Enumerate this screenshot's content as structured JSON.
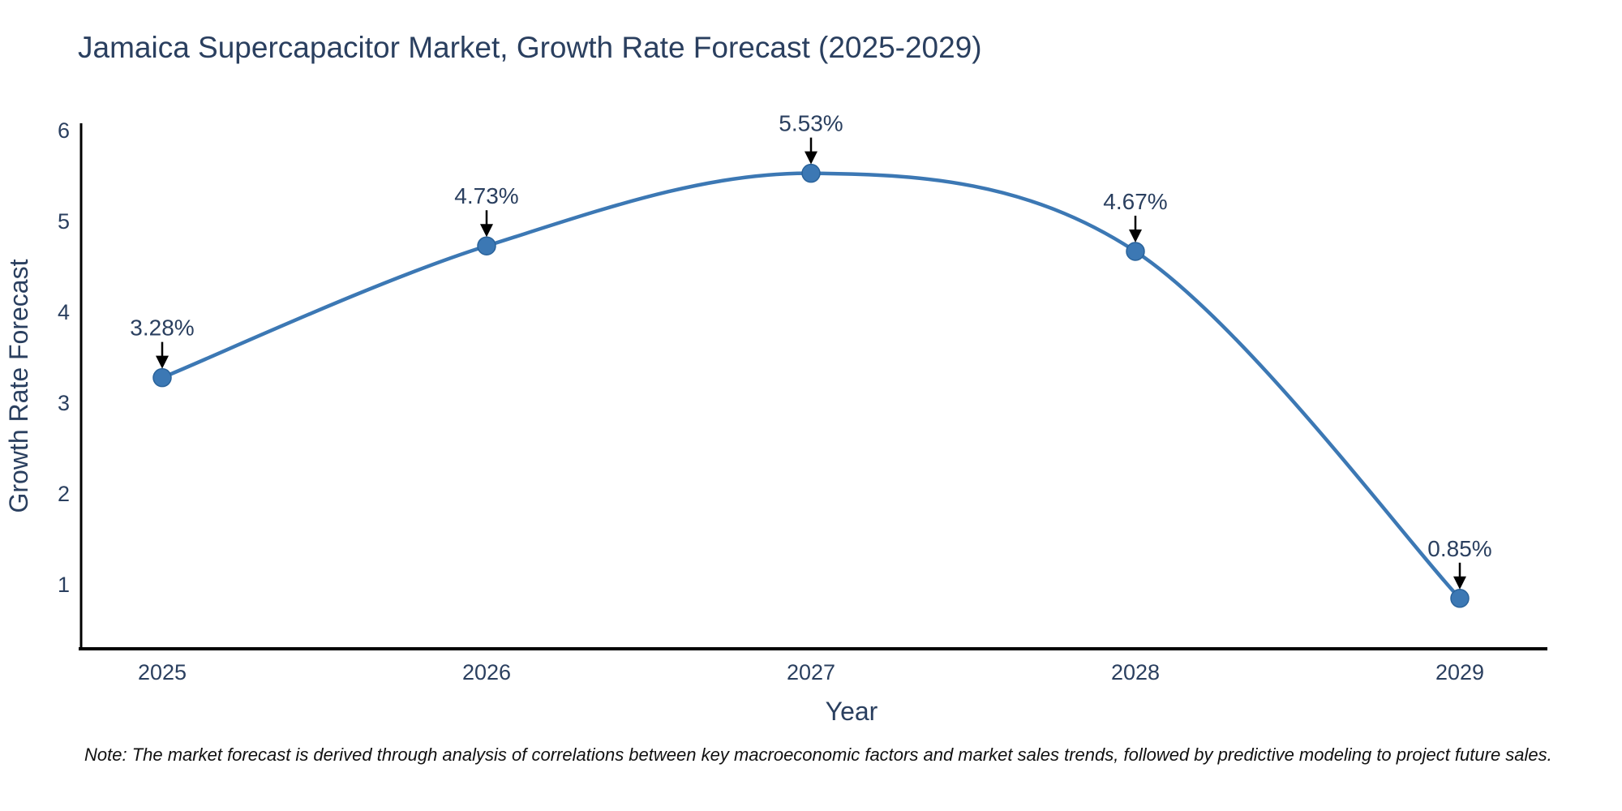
{
  "chart_data": {
    "type": "line",
    "title": "Jamaica Supercapacitor Market, Growth Rate Forecast (2025-2029)",
    "xlabel": "Year",
    "ylabel": "Growth Rate Forecast",
    "x": [
      2025,
      2026,
      2027,
      2028,
      2029
    ],
    "y": [
      3.28,
      4.73,
      5.53,
      4.67,
      0.85
    ],
    "point_labels": [
      "3.28%",
      "4.73%",
      "5.53%",
      "4.67%",
      "0.85%"
    ],
    "xticks": [
      "2025",
      "2026",
      "2027",
      "2028",
      "2029"
    ],
    "yticks": [
      1,
      2,
      3,
      4,
      5,
      6
    ],
    "xlim": [
      2024.74,
      2029.27
    ],
    "ylim": [
      0.3,
      6.08
    ],
    "line_shape": "spline",
    "grid": false,
    "legend": "none",
    "colors": {
      "line": "#3c78b4",
      "marker": "#3c78b4",
      "marker_edge": "#2a639b",
      "annotation_text": "#2a3f5f",
      "annotation_arrow": "#000000",
      "axis_line": "#000000",
      "tick_text": "#2a3f5f",
      "axis_title_text": "#2a3f5f"
    }
  },
  "note": {
    "text": "Note: The market forecast is derived through analysis of correlations between key macroeconomic factors and market sales trends, followed by predictive modeling to project future sales."
  }
}
